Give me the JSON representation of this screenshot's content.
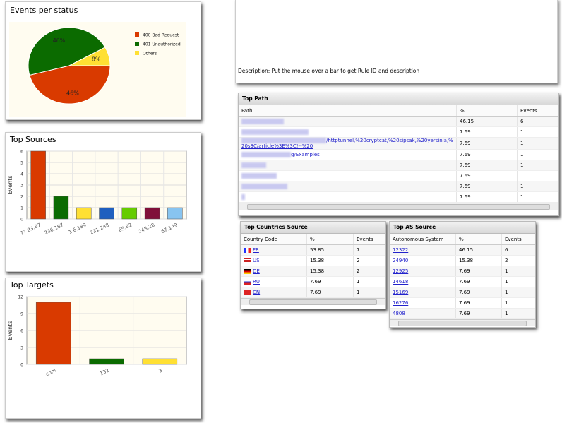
{
  "chart_data": [
    {
      "type": "pie",
      "title": "Events per status",
      "categories": [
        "400 Bad Request",
        "401 Unauthorized",
        "Others"
      ],
      "values": [
        46,
        46,
        8
      ],
      "value_labels": [
        "46%",
        "46%",
        "8%"
      ],
      "colors": [
        "#d93a00",
        "#0b6b00",
        "#ffe033"
      ],
      "legend": "right"
    },
    {
      "type": "bar",
      "title": "Top Sources",
      "y_label": "Events",
      "categories": [
        "77.83.67",
        "236.167",
        "1.6.189",
        "231.248",
        "65.62",
        "248.28",
        "67.149"
      ],
      "values": [
        6,
        2,
        1,
        1,
        1,
        1,
        1
      ],
      "colors": [
        "#d93a00",
        "#0b6b00",
        "#ffe033",
        "#1f5fbf",
        "#66cc00",
        "#80103a",
        "#88c4f0"
      ],
      "ylim": [
        0,
        6
      ],
      "yticks": [
        0,
        1,
        2,
        3,
        4,
        5,
        6
      ],
      "grid": true
    },
    {
      "type": "bar",
      "title": "Top Targets",
      "y_label": "Events",
      "categories": [
        ".com",
        "132",
        "3"
      ],
      "values": [
        11,
        1,
        1
      ],
      "colors": [
        "#d93a00",
        "#0b6b00",
        "#ffe033"
      ],
      "ylim": [
        0,
        12
      ],
      "yticks": [
        0,
        3,
        6,
        9,
        12
      ],
      "grid": true
    }
  ],
  "description": "Description: Put the mouse over a bar to get Rule ID and description",
  "top_path": {
    "title": "Top Path",
    "columns": [
      "Path",
      "%",
      "Events"
    ],
    "rows": [
      [
        null,
        46.15,
        6
      ],
      [
        null,
        7.69,
        1
      ],
      [
        "/httptunnel,%20cryptcat,%20sipsak,%20yersinia,%20s3C/article%3E%3C!--%20",
        7.69,
        1
      ],
      [
        "g/Examples",
        7.69,
        1
      ],
      [
        null,
        7.69,
        1
      ],
      [
        null,
        7.69,
        1
      ],
      [
        null,
        7.69,
        1
      ],
      [
        null,
        7.69,
        1
      ]
    ]
  },
  "top_countries": {
    "title": "Top Countries Source",
    "columns": [
      "Country Code",
      "%",
      "Events"
    ],
    "rows": [
      [
        "FR",
        53.85,
        7
      ],
      [
        "US",
        15.38,
        2
      ],
      [
        "DE",
        15.38,
        2
      ],
      [
        "RU",
        7.69,
        1
      ],
      [
        "CN",
        7.69,
        1
      ]
    ]
  },
  "top_as": {
    "title": "Top AS Source",
    "columns": [
      "Autonomous System",
      "%",
      "Events"
    ],
    "rows": [
      [
        "12322",
        46.15,
        6
      ],
      [
        "24940",
        15.38,
        2
      ],
      [
        "12925",
        7.69,
        1
      ],
      [
        "14618",
        7.69,
        1
      ],
      [
        "15169",
        7.69,
        1
      ],
      [
        "16276",
        7.69,
        1
      ],
      [
        "4808",
        7.69,
        1
      ]
    ]
  }
}
